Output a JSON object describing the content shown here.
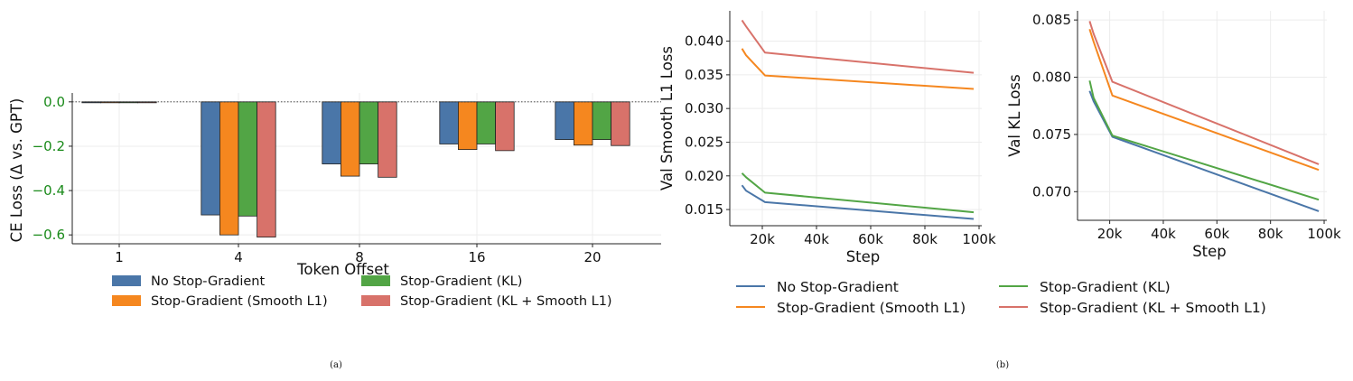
{
  "colors": {
    "No Stop-Gradient": "#4a76a8",
    "Stop-Gradient (Smooth L1)": "#f5871f",
    "Stop-Gradient (KL)": "#52a545",
    "Stop-Gradient (KL + Smooth L1)": "#d8726a"
  },
  "captions": {
    "a": "(a)",
    "b": "(b)"
  },
  "chart_data": [
    {
      "type": "bar",
      "xlabel": "Token Offset",
      "ylabel": "CE Loss (Δ vs. GPT)",
      "categories": [
        "1",
        "4",
        "8",
        "16",
        "20"
      ],
      "ylim": [
        -0.64,
        0.04
      ],
      "yticks": [
        0.0,
        -0.2,
        -0.4,
        -0.6
      ],
      "ytick_labels": [
        "0.0",
        "−0.2",
        "−0.4",
        "−0.6"
      ],
      "series": [
        {
          "name": "No Stop-Gradient",
          "values": [
            -0.002,
            -0.51,
            -0.28,
            -0.19,
            -0.17
          ]
        },
        {
          "name": "Stop-Gradient (Smooth L1)",
          "values": [
            -0.002,
            -0.6,
            -0.335,
            -0.215,
            -0.195
          ]
        },
        {
          "name": "Stop-Gradient (KL)",
          "values": [
            -0.002,
            -0.515,
            -0.28,
            -0.19,
            -0.17
          ]
        },
        {
          "name": "Stop-Gradient (KL + Smooth L1)",
          "values": [
            -0.002,
            -0.61,
            -0.34,
            -0.22,
            -0.197
          ]
        }
      ],
      "legend": "bottom",
      "grid": true
    },
    {
      "type": "line",
      "xlabel": "Step",
      "ylabel": "Val Smooth L1 Loss",
      "xlim": [
        8000,
        101000
      ],
      "ylim": [
        0.0126,
        0.0445
      ],
      "xticks": [
        20000,
        40000,
        60000,
        80000,
        100000
      ],
      "xtick_labels": [
        "20k",
        "40k",
        "60k",
        "80k",
        "100k"
      ],
      "yticks": [
        0.015,
        0.02,
        0.025,
        0.03,
        0.035,
        0.04
      ],
      "ytick_labels": [
        "0.015",
        "0.020",
        "0.025",
        "0.030",
        "0.035",
        "0.040"
      ],
      "series": [
        {
          "name": "No Stop-Gradient",
          "x": [
            12500,
            14000,
            21000,
            98000
          ],
          "values": [
            0.0186,
            0.0178,
            0.0161,
            0.0136
          ]
        },
        {
          "name": "Stop-Gradient (Smooth L1)",
          "x": [
            12500,
            14000,
            21000,
            98000
          ],
          "values": [
            0.0389,
            0.0379,
            0.0349,
            0.0329
          ]
        },
        {
          "name": "Stop-Gradient (KL)",
          "x": [
            12500,
            14000,
            21000,
            98000
          ],
          "values": [
            0.0204,
            0.0198,
            0.0175,
            0.0146
          ]
        },
        {
          "name": "Stop-Gradient (KL + Smooth L1)",
          "x": [
            12500,
            14000,
            21000,
            98000
          ],
          "values": [
            0.0431,
            0.0422,
            0.0383,
            0.0353
          ]
        }
      ],
      "legend": "bottom",
      "grid": true
    },
    {
      "type": "line",
      "xlabel": "Step",
      "ylabel": "Val KL Loss",
      "xlim": [
        8000,
        101000
      ],
      "ylim": [
        0.0675,
        0.0858
      ],
      "xticks": [
        20000,
        40000,
        60000,
        80000,
        100000
      ],
      "xtick_labels": [
        "20k",
        "40k",
        "60k",
        "80k",
        "100k"
      ],
      "yticks": [
        0.07,
        0.075,
        0.08,
        0.085
      ],
      "ytick_labels": [
        "0.070",
        "0.075",
        "0.080",
        "0.085"
      ],
      "series": [
        {
          "name": "No Stop-Gradient",
          "x": [
            12500,
            14000,
            21000,
            98000
          ],
          "values": [
            0.0788,
            0.0779,
            0.0748,
            0.0683
          ]
        },
        {
          "name": "Stop-Gradient (Smooth L1)",
          "x": [
            12500,
            14000,
            21000,
            98000
          ],
          "values": [
            0.0842,
            0.0831,
            0.0784,
            0.0719
          ]
        },
        {
          "name": "Stop-Gradient (KL)",
          "x": [
            12500,
            14000,
            21000,
            98000
          ],
          "values": [
            0.0797,
            0.0782,
            0.0749,
            0.0693
          ]
        },
        {
          "name": "Stop-Gradient (KL + Smooth L1)",
          "x": [
            12500,
            14000,
            21000,
            98000
          ],
          "values": [
            0.0849,
            0.0838,
            0.0796,
            0.0724
          ]
        }
      ],
      "legend": "bottom",
      "grid": true
    }
  ]
}
